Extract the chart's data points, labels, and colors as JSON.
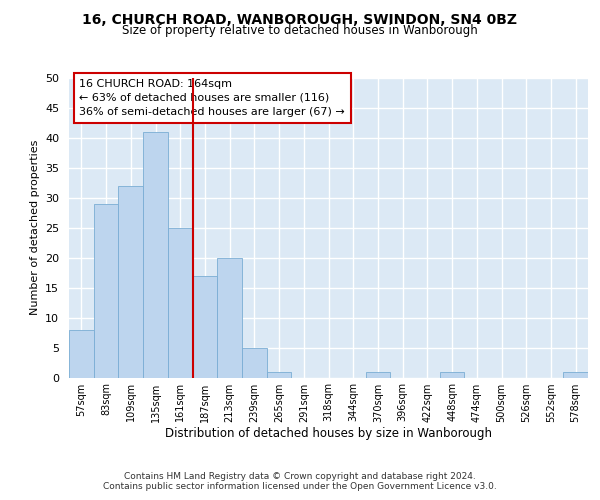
{
  "title_line1": "16, CHURCH ROAD, WANBOROUGH, SWINDON, SN4 0BZ",
  "title_line2": "Size of property relative to detached houses in Wanborough",
  "xlabel": "Distribution of detached houses by size in Wanborough",
  "ylabel": "Number of detached properties",
  "categories": [
    "57sqm",
    "83sqm",
    "109sqm",
    "135sqm",
    "161sqm",
    "187sqm",
    "213sqm",
    "239sqm",
    "265sqm",
    "291sqm",
    "318sqm",
    "344sqm",
    "370sqm",
    "396sqm",
    "422sqm",
    "448sqm",
    "474sqm",
    "500sqm",
    "526sqm",
    "552sqm",
    "578sqm"
  ],
  "values": [
    8,
    29,
    32,
    41,
    25,
    17,
    20,
    5,
    1,
    0,
    0,
    0,
    1,
    0,
    0,
    1,
    0,
    0,
    0,
    0,
    1
  ],
  "bar_color": "#bdd5ee",
  "bar_edgecolor": "#7aadd4",
  "vline_color": "#cc0000",
  "annotation_text": "16 CHURCH ROAD: 164sqm\n← 63% of detached houses are smaller (116)\n36% of semi-detached houses are larger (67) →",
  "annotation_box_color": "#ffffff",
  "annotation_box_edgecolor": "#cc0000",
  "ylim": [
    0,
    50
  ],
  "yticks": [
    0,
    5,
    10,
    15,
    20,
    25,
    30,
    35,
    40,
    45,
    50
  ],
  "background_color": "#dce9f5",
  "grid_color": "#ffffff",
  "figure_bg": "#ffffff",
  "footer_line1": "Contains HM Land Registry data © Crown copyright and database right 2024.",
  "footer_line2": "Contains public sector information licensed under the Open Government Licence v3.0."
}
